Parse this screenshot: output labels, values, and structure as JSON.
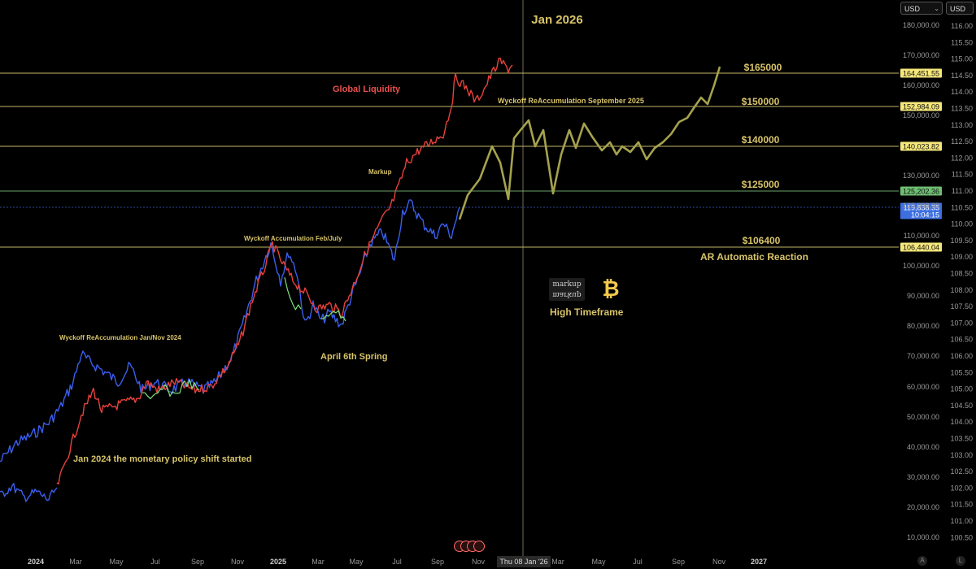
{
  "top_controls": {
    "currency_selector": "USD",
    "currency_right": "USD"
  },
  "header": {
    "title": "Jan 2026"
  },
  "annotations": {
    "global_liquidity": "Global Liquidity",
    "wyckoff_reaccum_sep": "Wyckoff ReAccumulation September  2025",
    "markup": "Markup",
    "wyckoff_accum": "Wyckoff Accumulation Feb/July",
    "wyckoff_reaccum_2024": "Wyckoff ReAccumulation Jan/Nov 2024",
    "april_spring": "April 6th Spring",
    "jan2024": "Jan 2024 the monetary policy shift started",
    "ar_reaction": "AR Automatic Reaction",
    "high_timeframe": "High Timeframe"
  },
  "logo": {
    "line1": "markup",
    "line2": "markup"
  },
  "btc_icon": "bitcoin-icon",
  "crosshair": {
    "date_label": "Thu 08 Jan '26"
  },
  "corner_buttons": {
    "auto": "A",
    "log": "L"
  },
  "chart_data": {
    "type": "line",
    "x_labels": [
      "2024",
      "Mar",
      "May",
      "Jul",
      "Sep",
      "Nov",
      "2025",
      "Mar",
      "May",
      "Jul",
      "Sep",
      "Nov",
      "Mar",
      "May",
      "Jul",
      "Sep",
      "Nov",
      "2027"
    ],
    "y_left_ticks": [
      "180,000.00",
      "170,000.00",
      "160,000.00",
      "150,000.00",
      "130,000.00",
      "120,000.00",
      "110,000.00",
      "100,000.00",
      "90,000.00",
      "80,000.00",
      "70,000.00",
      "60,000.00",
      "50,000.00",
      "40,000.00",
      "30,000.00",
      "20,000.00",
      "10,000.00"
    ],
    "y_right_ticks": [
      "116.00",
      "115.50",
      "115.00",
      "114.50",
      "114.00",
      "113.50",
      "113.00",
      "112.50",
      "112.00",
      "111.50",
      "111.00",
      "110.50",
      "110.00",
      "109.50",
      "109.00",
      "108.50",
      "108.00",
      "107.50",
      "107.00",
      "106.50",
      "106.00",
      "105.50",
      "105.00",
      "104.50",
      "104.00",
      "103.50",
      "103.00",
      "102.50",
      "102.00",
      "101.50",
      "101.00",
      "100.50"
    ],
    "price_labels": [
      {
        "text": "164,451.55",
        "color": "#f5e77a"
      },
      {
        "text": "152,984.09",
        "color": "#f5e77a"
      },
      {
        "text": "140,023.82",
        "color": "#f5e77a"
      },
      {
        "text": "125,202.36",
        "color": "#6fbf73"
      },
      {
        "text": "119,838.35",
        "sub": "10:04:15",
        "color": "#3d6fe0"
      },
      {
        "text": "106,440.04",
        "color": "#f5e77a"
      }
    ],
    "levels": [
      "$165000",
      "$150000",
      "$140000",
      "$125000",
      "$106400"
    ],
    "series": [
      {
        "name": "Global Liquidity",
        "color": "#e8413c"
      }
    ]
  }
}
